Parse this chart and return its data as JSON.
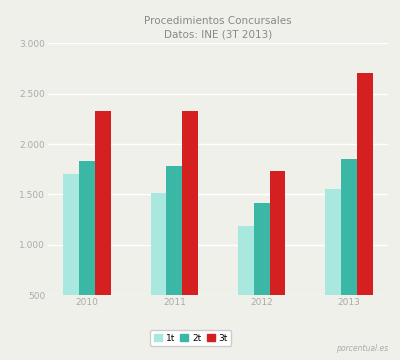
{
  "title": "Procedimientos Concursales",
  "subtitle": "Datos: INE (3T 2013)",
  "years": [
    "2010",
    "2011",
    "2012",
    "2013"
  ],
  "series": {
    "1t": [
      1700,
      1510,
      1190,
      1555
    ],
    "2t": [
      1830,
      1780,
      1415,
      1850
    ],
    "3t": [
      2330,
      2330,
      1730,
      2700
    ]
  },
  "colors": {
    "1t": "#a8e8de",
    "2t": "#3ab8a5",
    "3t": "#d42020"
  },
  "series_keys": [
    "1t",
    "2t",
    "3t"
  ],
  "ylim": [
    500,
    3000
  ],
  "yticks": [
    500,
    1000,
    1500,
    2000,
    2500,
    3000
  ],
  "ytick_labels": [
    "500",
    "1.000",
    "1.500",
    "2.000",
    "2.500",
    "3.000"
  ],
  "background_color": "#f0f0eb",
  "plot_bg_color": "#f0f0eb",
  "grid_color": "#ffffff",
  "bar_width": 0.18,
  "title_fontsize": 7.5,
  "tick_fontsize": 6.5,
  "legend_fontsize": 6.5,
  "tick_color": "#aaaaaa",
  "title_color": "#888888"
}
